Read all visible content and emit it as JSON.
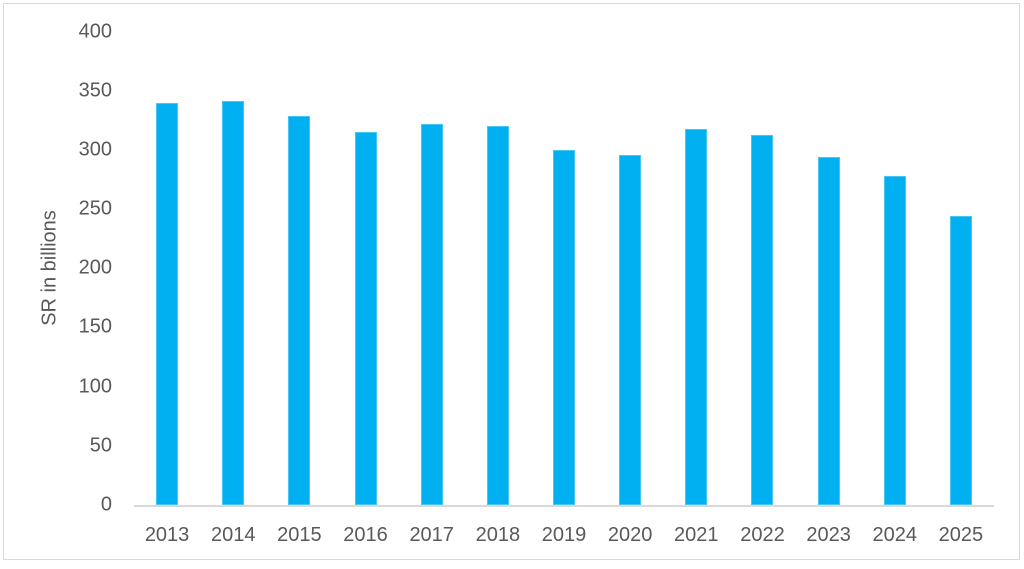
{
  "chart_data": {
    "type": "bar",
    "title": "",
    "xlabel": "",
    "ylabel": "SR in billions",
    "categories": [
      "2013",
      "2014",
      "2015",
      "2016",
      "2017",
      "2018",
      "2019",
      "2020",
      "2021",
      "2022",
      "2023",
      "2024",
      "2025"
    ],
    "values": [
      340,
      341,
      329,
      315,
      322,
      320,
      300,
      296,
      318,
      313,
      294,
      278,
      244
    ],
    "ylim": [
      0,
      400
    ],
    "ytick_step": 50,
    "yticks": [
      0,
      50,
      100,
      150,
      200,
      250,
      300,
      350,
      400
    ],
    "grid": false,
    "legend": false,
    "bar_color": "#00b0f0",
    "text_color": "#595959",
    "axis_line_color": "#d9d9d9",
    "frame_border_color": "#d9d9d9",
    "background_color": "#ffffff"
  }
}
